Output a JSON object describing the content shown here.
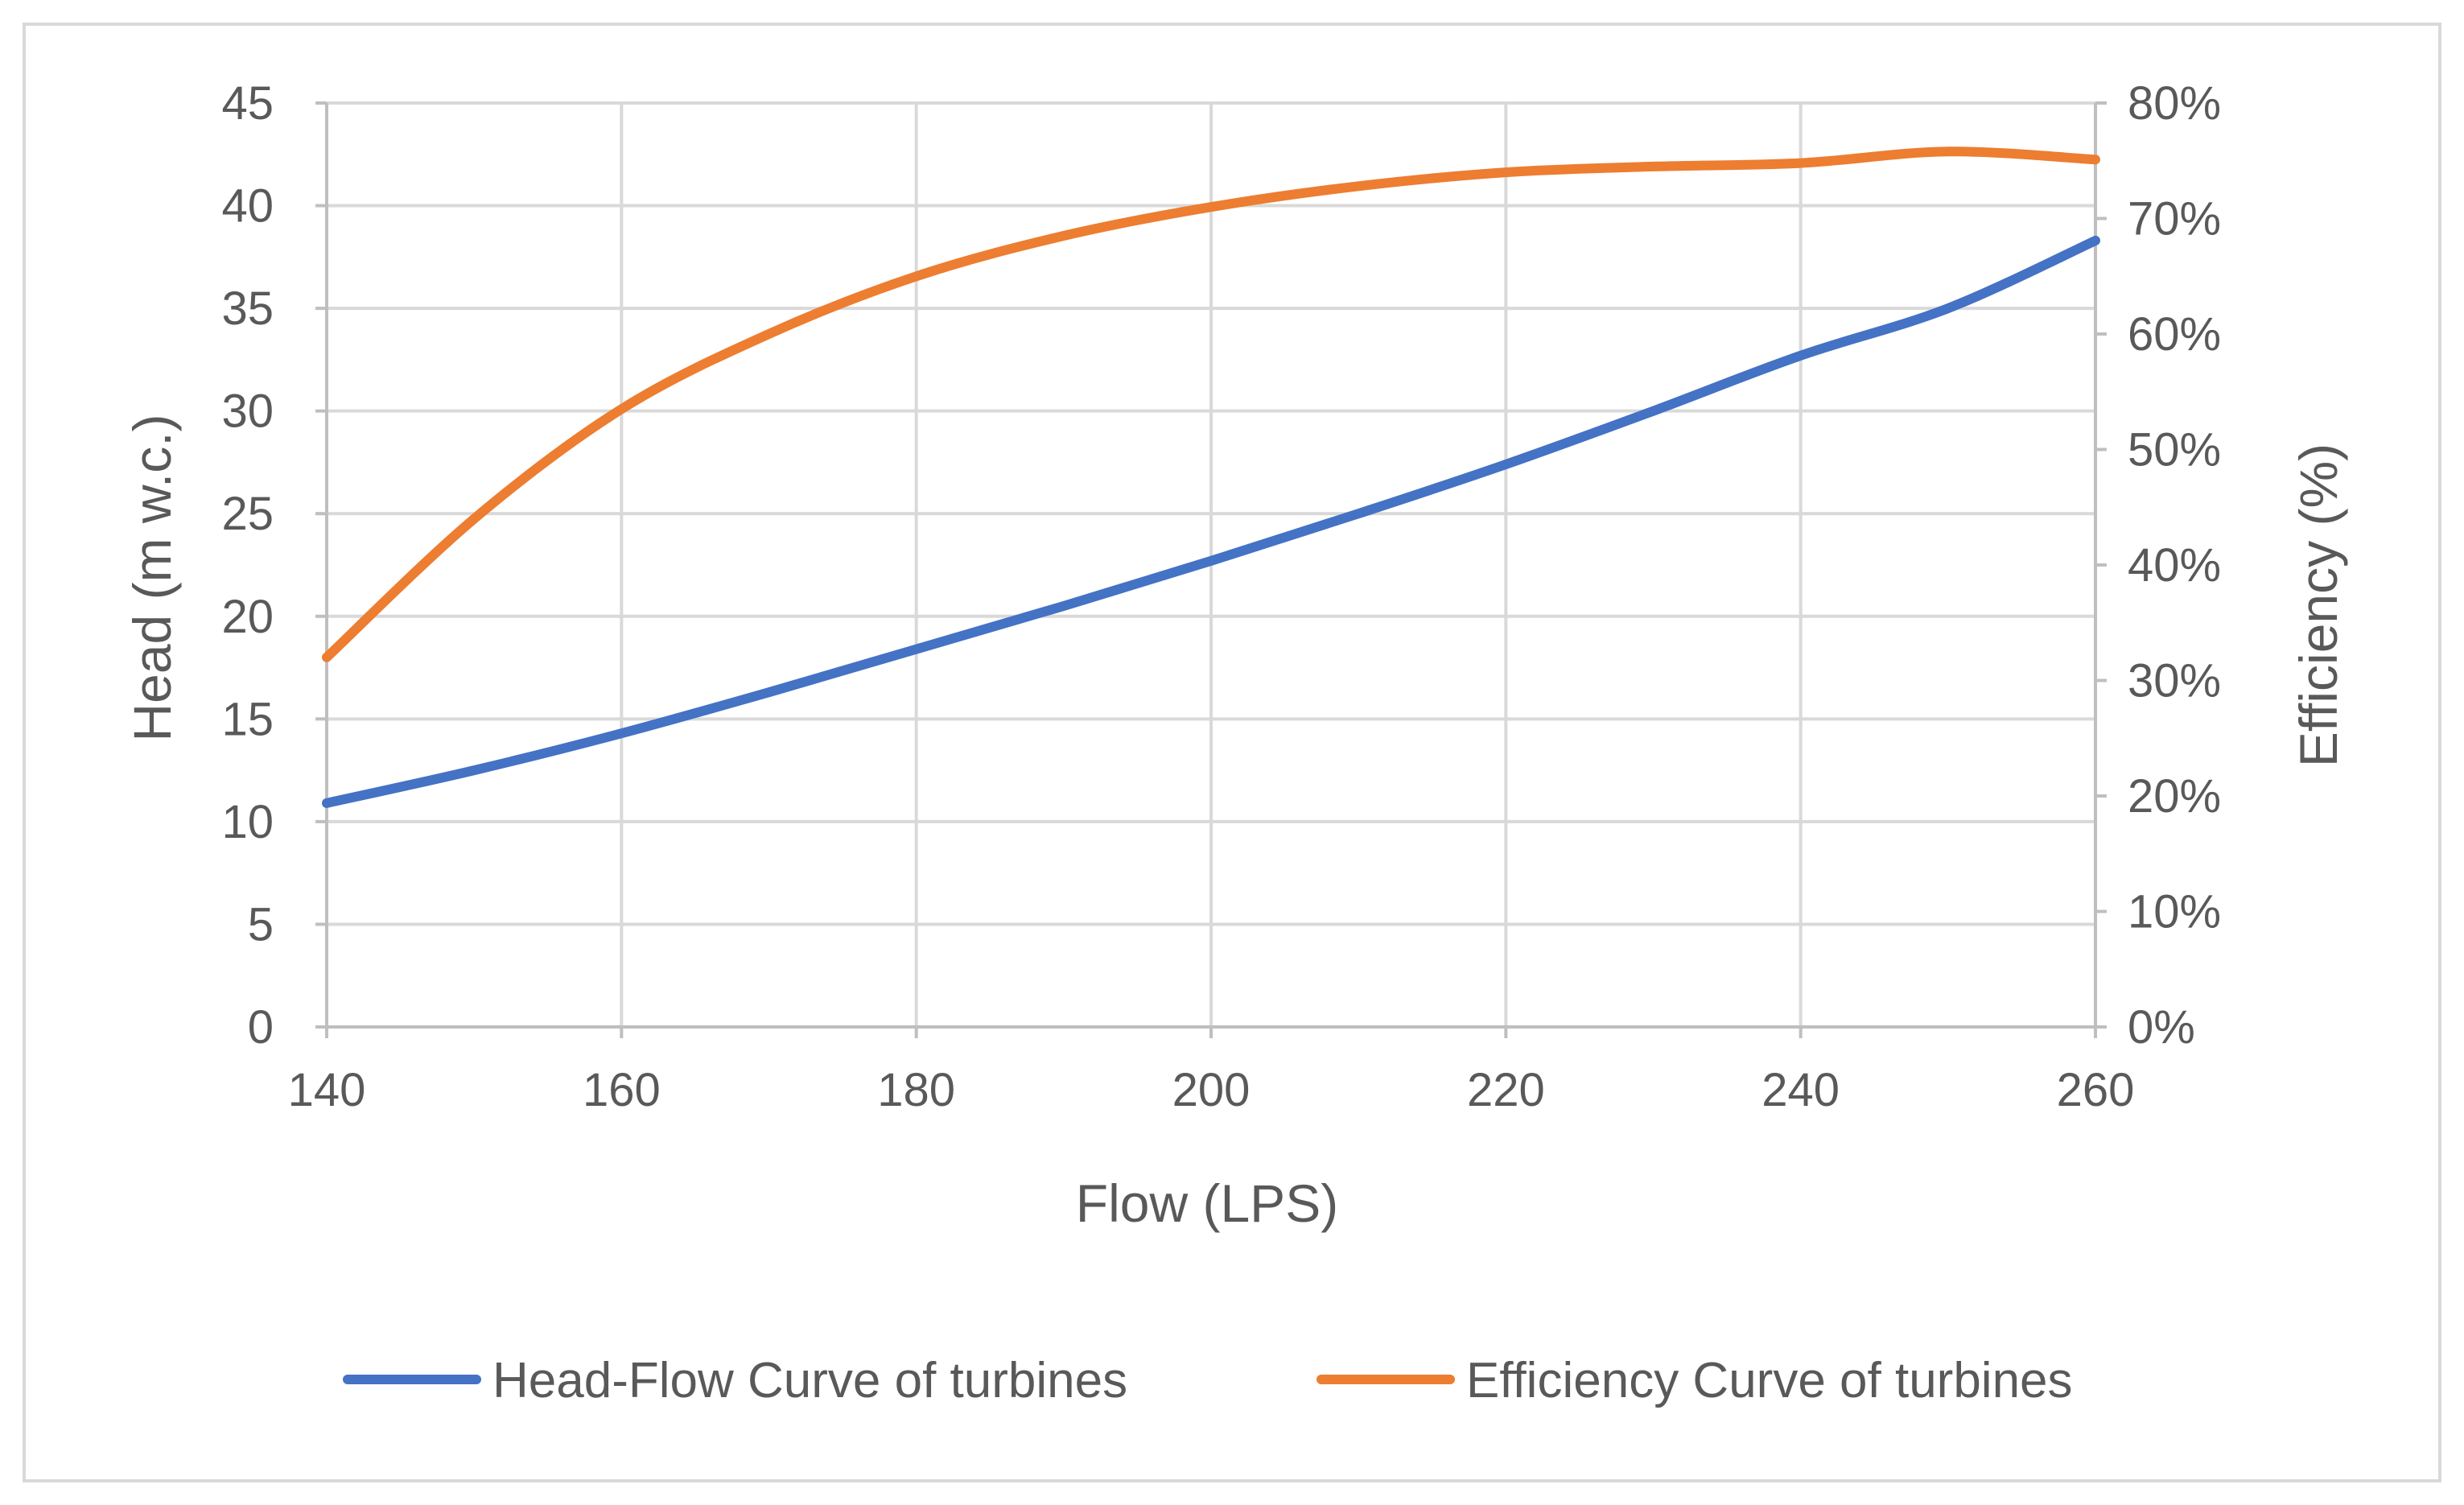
{
  "chart_data": {
    "type": "line",
    "title": "",
    "xlabel": "Flow (LPS)",
    "ylabel": "Head (m w.c.)",
    "y2label": "Efficiency (%)",
    "xlim": [
      140,
      260
    ],
    "ylim": [
      0,
      45
    ],
    "y2lim": [
      0,
      80
    ],
    "xticks": [
      140,
      160,
      180,
      200,
      220,
      240,
      260
    ],
    "yticks": [
      0,
      5,
      10,
      15,
      20,
      25,
      30,
      35,
      40,
      45
    ],
    "y2ticks": [
      "0%",
      "10%",
      "20%",
      "30%",
      "40%",
      "50%",
      "60%",
      "70%",
      "80%"
    ],
    "y2tick_values": [
      0,
      10,
      20,
      30,
      40,
      50,
      60,
      70,
      80
    ],
    "grid": true,
    "legend_position": "bottom",
    "series": [
      {
        "name": "Head-Flow Curve of turbines",
        "axis": "left",
        "color": "#4472C4",
        "x": [
          140,
          150,
          160,
          170,
          180,
          190,
          200,
          210,
          220,
          230,
          240,
          250,
          260
        ],
        "y": [
          10.9,
          12.5,
          14.3,
          16.3,
          18.4,
          20.5,
          22.7,
          25.0,
          27.4,
          30.0,
          32.7,
          35.0,
          38.3
        ]
      },
      {
        "name": "Efficiency Curve of turbines",
        "axis": "right",
        "color": "#ED7D31",
        "x": [
          140,
          150,
          160,
          170,
          180,
          190,
          200,
          210,
          220,
          230,
          240,
          250,
          260
        ],
        "y": [
          32.0,
          44.0,
          53.5,
          60.0,
          65.0,
          68.5,
          71.0,
          72.8,
          74.0,
          74.5,
          74.8,
          75.8,
          75.1
        ]
      }
    ]
  }
}
